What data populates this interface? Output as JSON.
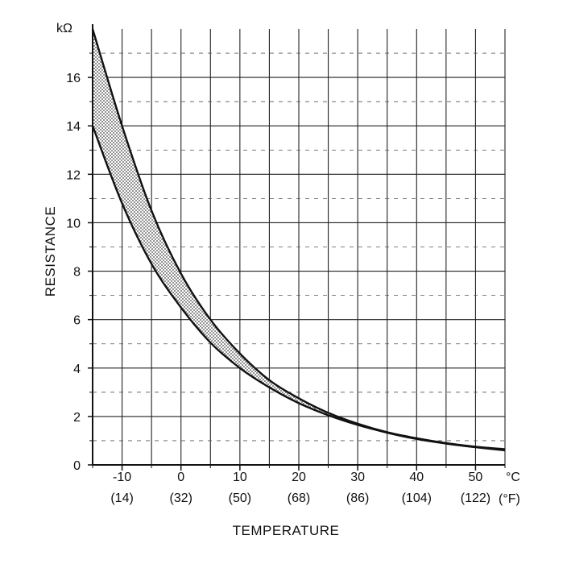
{
  "chart_data": {
    "type": "area",
    "title": "",
    "xlabel": "TEMPERATURE",
    "ylabel": "RESISTANCE",
    "y_unit": "kΩ",
    "x_unit_c": "°C",
    "x_unit_f": "(°F)",
    "xlim": [
      -15,
      55
    ],
    "ylim": [
      0,
      18
    ],
    "grid": true,
    "x_major_ticks": [
      -10,
      0,
      10,
      20,
      30,
      40,
      50
    ],
    "x_minor_ticks": [
      -15,
      -5,
      5,
      15,
      25,
      35,
      45,
      55
    ],
    "x_tick_labels_c": [
      "-10",
      "0",
      "10",
      "20",
      "30",
      "40",
      "50"
    ],
    "x_tick_labels_f": [
      "(14)",
      "(32)",
      "(50)",
      "(68)",
      "(86)",
      "(104)",
      "(122)"
    ],
    "y_ticks": [
      0,
      2,
      4,
      6,
      8,
      10,
      12,
      14,
      16
    ],
    "y_tick_labels": [
      "0",
      "2",
      "4",
      "6",
      "8",
      "10",
      "12",
      "14",
      "16"
    ],
    "series": [
      {
        "x": [
          -15,
          -10,
          -5,
          0,
          5,
          10,
          15,
          20,
          25,
          30,
          35,
          40,
          45,
          50,
          55
        ],
        "values": [
          18.0,
          14.0,
          10.5,
          7.9,
          6.0,
          4.6,
          3.5,
          2.75,
          2.15,
          1.7,
          1.35,
          1.1,
          0.9,
          0.75,
          0.65
        ]
      },
      {
        "x": [
          -15,
          -10,
          -5,
          0,
          5,
          10,
          15,
          20,
          25,
          30,
          35,
          40,
          45,
          50,
          55
        ],
        "values": [
          14.0,
          10.8,
          8.3,
          6.5,
          5.05,
          4.0,
          3.2,
          2.55,
          2.05,
          1.65,
          1.33,
          1.07,
          0.88,
          0.73,
          0.6
        ]
      }
    ],
    "fill_between": true,
    "colors": {
      "axis": "#111111",
      "grid": "#222222",
      "band": "#bdbdbd"
    }
  }
}
